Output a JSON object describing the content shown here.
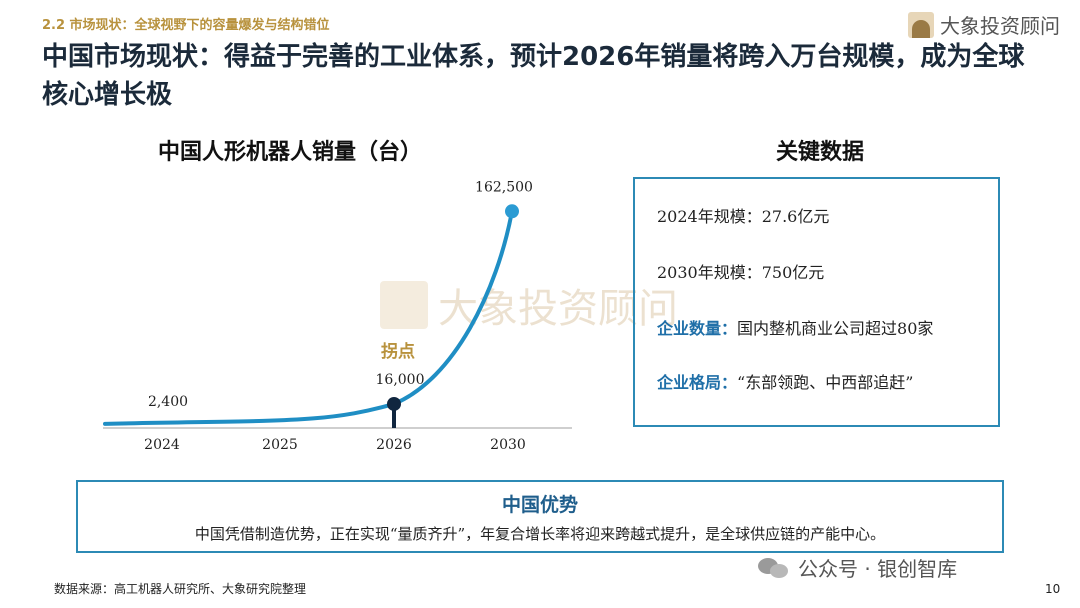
{
  "section_tag": "2.2 市场现状：全球视野下的容量爆发与结构错位",
  "page_title": "中国市场现状：得益于完善的工业体系，预计2026年销量将跨入万台规模，成为全球核心增长极",
  "logo_text": "大象投资顾问",
  "watermark_text": "大象投资顾问",
  "chart_data": {
    "type": "line",
    "title": "中国人形机器人销量（台）",
    "categories": [
      "2024",
      "2025",
      "2026",
      "2030"
    ],
    "points": [
      {
        "x": "2024",
        "y": 2400,
        "label": "2,400"
      },
      {
        "x": "2026",
        "y": 16000,
        "label": "16,000"
      },
      {
        "x": "2030",
        "y": 162500,
        "label": "162,500"
      }
    ],
    "annotation": "拐点",
    "ylim": [
      0,
      170000
    ],
    "grid": false,
    "colors": {
      "line": "#1f8ec4",
      "marker_2030": "#2b9bd3",
      "marker_2026": "#10263f",
      "annotation": "#b8923d"
    }
  },
  "key_data": {
    "title": "关键数据",
    "rows": [
      {
        "key": "",
        "value": "2024年规模：27.6亿元"
      },
      {
        "key": "",
        "value": "2030年规模：750亿元"
      },
      {
        "key": "企业数量：",
        "value": "国内整机商业公司超过80家"
      },
      {
        "key": "企业格局：",
        "value": "“东部领跑、中西部追赶”"
      }
    ]
  },
  "advantage": {
    "title": "中国优势",
    "text": "中国凭借制造优势，正在实现“量质齐升”，年复合增长率将迎来跨越式提升，是全球供应链的产能中心。"
  },
  "source": "数据来源：高工机器人研究所、大象研究院整理",
  "footer_brand": "公众号 · 银创智库",
  "page_number": "10"
}
